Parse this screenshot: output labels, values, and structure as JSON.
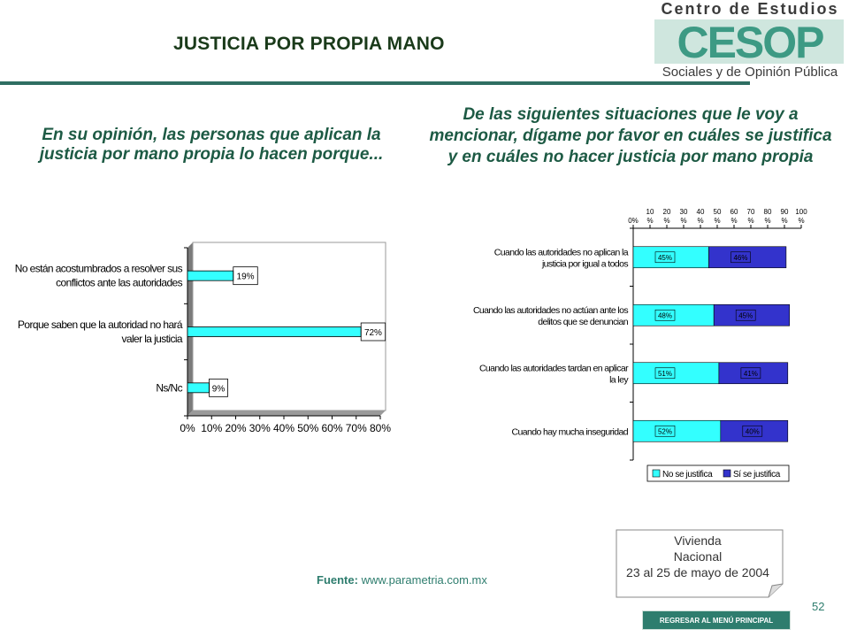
{
  "header": {
    "title": "JUSTICIA POR PROPIA MANO",
    "logo": {
      "line1": "Centro de Estudios",
      "mark": "CESOP",
      "line2": "Sociales y de Opinión Pública"
    }
  },
  "left_question": "En su opinión, las personas que aplican la justicia por mano propia lo hacen porque...",
  "right_question": "De las siguientes situaciones que le voy a mencionar, dígame por favor en cuáles se justifica y en cuáles no hacer justicia por mano propia",
  "colors": {
    "cyan": "#33ffff",
    "navy": "#3333cc",
    "accent": "#2e7d6e",
    "title": "#1a3a1a"
  },
  "chart_data": [
    {
      "type": "bar",
      "orientation": "horizontal",
      "categories": [
        [
          "No están acostumbrados a resolver sus",
          "conflictos ante las autoridades"
        ],
        [
          "Porque saben que la autoridad no hará",
          "valer la justicia"
        ],
        [
          "Ns/Nc"
        ]
      ],
      "values": [
        19,
        72,
        9
      ],
      "data_labels": [
        "19%",
        "72%",
        "9%"
      ],
      "xlim": [
        0,
        80
      ],
      "x_ticks": [
        "0%",
        "10%",
        "20%",
        "30%",
        "40%",
        "50%",
        "60%",
        "70%",
        "80%"
      ],
      "grid": false,
      "color": "#33ffff"
    },
    {
      "type": "bar",
      "orientation": "horizontal",
      "stacked": true,
      "categories": [
        [
          "Cuando las autoridades no aplican la",
          "justicia por igual a todos"
        ],
        [
          "Cuando las autoridades no actúan ante los",
          "delitos que se denuncian"
        ],
        [
          "Cuando las autoridades tardan en aplicar",
          "la ley"
        ],
        [
          "Cuando hay mucha inseguridad"
        ]
      ],
      "series": [
        {
          "name": "No se justifica",
          "values": [
            45,
            48,
            51,
            52
          ],
          "labels": [
            "45%",
            "48%",
            "51%",
            "52%"
          ],
          "color": "#33ffff"
        },
        {
          "name": "Sí se justifica",
          "values": [
            46,
            45,
            41,
            40
          ],
          "labels": [
            "46%",
            "45%",
            "41%",
            "40%"
          ],
          "color": "#3333cc"
        }
      ],
      "xlim": [
        0,
        100
      ],
      "x_ticks": [
        [
          "0%"
        ],
        [
          "10",
          "%"
        ],
        [
          "20",
          "%"
        ],
        [
          "30",
          "%"
        ],
        [
          "40",
          "%"
        ],
        [
          "50",
          "%"
        ],
        [
          "60",
          "%"
        ],
        [
          "70",
          "%"
        ],
        [
          "80",
          "%"
        ],
        [
          "90",
          "%"
        ],
        [
          "100",
          "%"
        ]
      ],
      "tick_position": "top",
      "legend_position": "bottom"
    }
  ],
  "info_box": {
    "line1": "Vivienda",
    "line2": "Nacional",
    "line3": "23 al 25 de mayo de 2004"
  },
  "source": {
    "label": "Fuente:",
    "url": "www.parametria.com.mx"
  },
  "page_number": "52",
  "menu_button": "REGRESAR AL MENÚ PRINCIPAL"
}
